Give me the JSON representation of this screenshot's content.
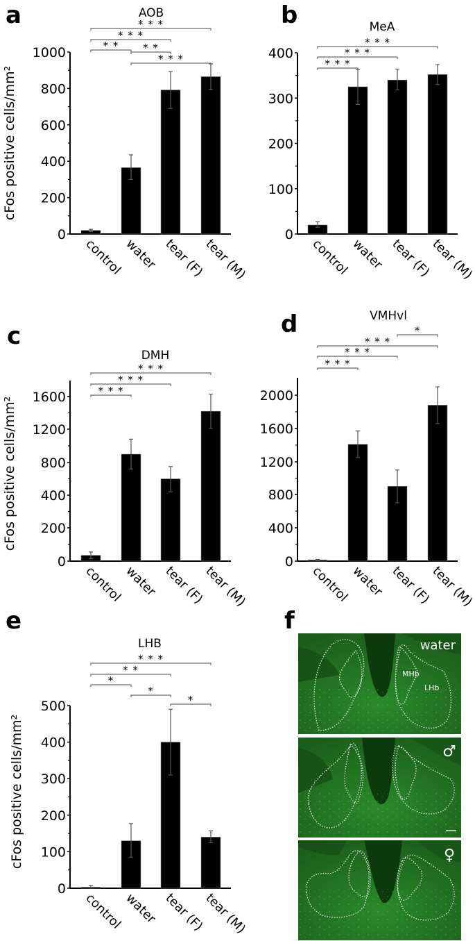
{
  "figure": {
    "ylabel": "cFos positive cells/mm²",
    "categories": [
      "control",
      "water",
      "tear (F)",
      "tear (M)"
    ],
    "bar_color": "#000000",
    "bracket_color": "#6a6a6a",
    "image_bg_color": "#1f6b1f"
  },
  "chart_data": [
    {
      "panel": "a",
      "type": "bar",
      "title": "AOB",
      "categories": [
        "control",
        "water",
        "tear (F)",
        "tear (M)"
      ],
      "values": [
        20,
        365,
        792,
        865
      ],
      "error_low": [
        14,
        300,
        690,
        795
      ],
      "error_high": [
        26,
        435,
        893,
        935
      ],
      "ylabel": "cFos positive cells/mm²",
      "ylim": [
        0,
        1000
      ],
      "yticks": [
        0,
        200,
        400,
        600,
        800,
        1000
      ],
      "significance": [
        {
          "from": "control",
          "to": "tear (M)",
          "label": "***"
        },
        {
          "from": "control",
          "to": "tear (F)",
          "label": "***"
        },
        {
          "from": "control",
          "to": "water",
          "label": "**"
        },
        {
          "from": "water",
          "to": "tear (F)",
          "label": "**"
        },
        {
          "from": "water",
          "to": "tear (M)",
          "label": "***"
        }
      ]
    },
    {
      "panel": "b",
      "type": "bar",
      "title": "MeA",
      "categories": [
        "control",
        "water",
        "tear (F)",
        "tear (M)"
      ],
      "values": [
        20,
        325,
        340,
        352
      ],
      "error_low": [
        15,
        286,
        318,
        330
      ],
      "error_high": [
        27,
        363,
        364,
        374
      ],
      "ylim": [
        0,
        400
      ],
      "yticks": [
        0,
        100,
        200,
        300,
        400
      ],
      "significance": [
        {
          "from": "control",
          "to": "tear (M)",
          "label": "***"
        },
        {
          "from": "control",
          "to": "tear (F)",
          "label": "***"
        },
        {
          "from": "control",
          "to": "water",
          "label": "***"
        }
      ]
    },
    {
      "panel": "c",
      "type": "bar",
      "title": "DMH",
      "categories": [
        "control",
        "water",
        "tear (F)",
        "tear (M)"
      ],
      "values": [
        35,
        900,
        600,
        1420
      ],
      "error_low": [
        15,
        720,
        440,
        1210
      ],
      "error_high": [
        55,
        1080,
        750,
        1630
      ],
      "ylabel": "cFos positive cells/mm²",
      "yticks": [
        0,
        200,
        400,
        800,
        1200,
        1600
      ],
      "significance": [
        {
          "from": "control",
          "to": "tear (M)",
          "label": "***"
        },
        {
          "from": "control",
          "to": "tear (F)",
          "label": "***"
        },
        {
          "from": "control",
          "to": "water",
          "label": "***"
        }
      ]
    },
    {
      "panel": "d",
      "type": "bar",
      "title": "VMHvl",
      "categories": [
        "control",
        "water",
        "tear (F)",
        "tear (M)"
      ],
      "values": [
        15,
        1410,
        900,
        1880
      ],
      "error_low": [
        10,
        1250,
        700,
        1660
      ],
      "error_high": [
        20,
        1570,
        1100,
        2100
      ],
      "ylim": [
        0,
        2200
      ],
      "yticks": [
        0,
        400,
        800,
        1200,
        1600,
        2000
      ],
      "significance": [
        {
          "from": "tear (F)",
          "to": "tear (M)",
          "label": "*"
        },
        {
          "from": "control",
          "to": "tear (M)",
          "label": "***"
        },
        {
          "from": "control",
          "to": "tear (F)",
          "label": "***"
        },
        {
          "from": "control",
          "to": "water",
          "label": "***"
        }
      ]
    },
    {
      "panel": "e",
      "type": "bar",
      "title": "LHB",
      "categories": [
        "control",
        "water",
        "tear (F)",
        "tear (M)"
      ],
      "values": [
        3,
        130,
        400,
        140
      ],
      "error_low": [
        0,
        85,
        310,
        125
      ],
      "error_high": [
        7,
        177,
        490,
        157
      ],
      "ylabel": "cFos positive cells/mm²",
      "ylim": [
        0,
        500
      ],
      "yticks": [
        0,
        100,
        200,
        300,
        400,
        500
      ],
      "significance": [
        {
          "from": "control",
          "to": "tear (M)",
          "label": "***"
        },
        {
          "from": "control",
          "to": "tear (F)",
          "label": "**"
        },
        {
          "from": "control",
          "to": "water",
          "label": "*"
        },
        {
          "from": "water",
          "to": "tear (F)",
          "label": "*"
        },
        {
          "from": "tear (F)",
          "to": "tear (M)",
          "label": "*"
        }
      ]
    }
  ],
  "panel_f": {
    "letter": "f",
    "images": [
      {
        "label": "water",
        "region_labels": [
          "MHb",
          "LHb"
        ]
      },
      {
        "label": "♂"
      },
      {
        "label": "♀"
      }
    ],
    "scale_bar": true
  }
}
